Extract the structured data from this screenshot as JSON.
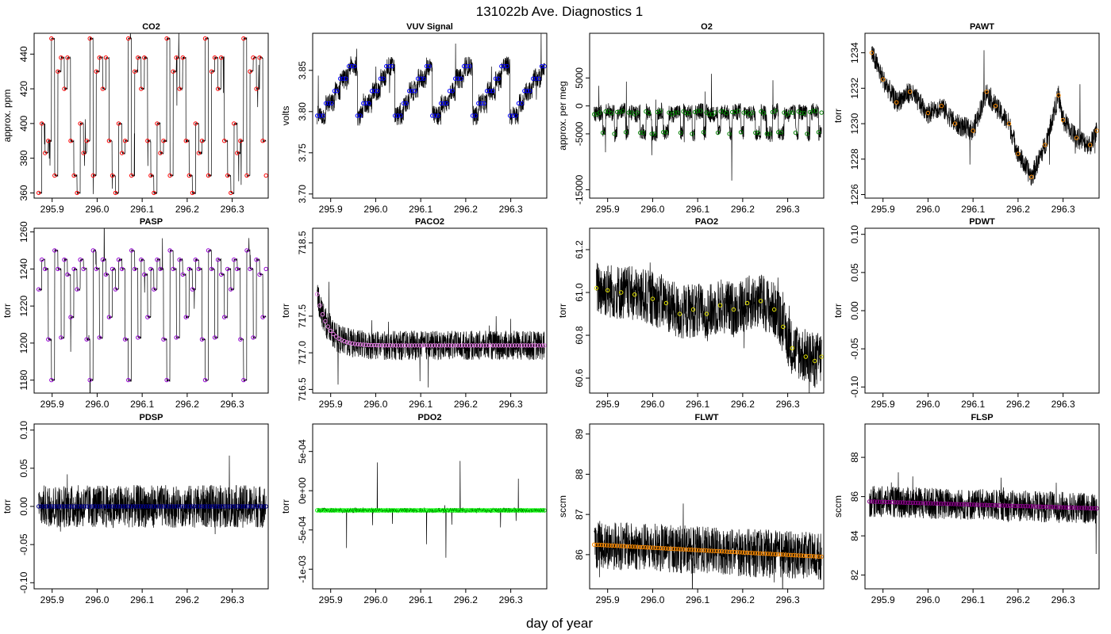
{
  "figure": {
    "title": "131022b   Ave. Diagnostics 1",
    "xlabel": "day of year"
  },
  "chart_data": [
    {
      "type": "line",
      "title": "CO2",
      "ylabel": "approx. ppm",
      "xlim": [
        295.86,
        296.38
      ],
      "ylim": [
        357,
        452
      ],
      "xticks": [
        "295.9",
        "296.0",
        "296.1",
        "296.2",
        "296.3"
      ],
      "yticks": [
        "360",
        "380",
        "400",
        "420",
        "440"
      ],
      "ytick_values": [
        360,
        380,
        400,
        420,
        440
      ],
      "marker_color": "#ff0000",
      "series": {
        "name": "CO2 averages",
        "pattern": "step",
        "cycle": [
          360,
          400,
          383,
          390,
          449,
          370,
          430,
          438,
          420,
          438,
          390,
          370
        ],
        "x_start": 295.87,
        "x_end": 296.375,
        "n": 72
      }
    },
    {
      "type": "line",
      "title": "VUV Signal",
      "ylabel": "volts",
      "xlim": [
        295.86,
        296.38
      ],
      "ylim": [
        3.695,
        3.895
      ],
      "xticks": [
        "295.9",
        "296.0",
        "296.1",
        "296.2",
        "296.3"
      ],
      "yticks": [
        "3.70",
        "3.75",
        "3.80",
        "3.85"
      ],
      "ytick_values": [
        3.7,
        3.75,
        3.8,
        3.85
      ],
      "marker_color": "#0000ff",
      "series": {
        "name": "VUV averages",
        "pattern": "sawtooth",
        "cycle": [
          3.795,
          3.81,
          3.825,
          3.84,
          3.855
        ],
        "x_start": 295.87,
        "x_end": 296.375,
        "n": 80
      }
    },
    {
      "type": "line",
      "title": "O2",
      "ylabel": "approx. per meg",
      "xlim": [
        295.86,
        296.38
      ],
      "ylim": [
        -16500,
        13000
      ],
      "xticks": [
        "295.9",
        "296.0",
        "296.1",
        "296.2",
        "296.3"
      ],
      "yticks": [
        "-15000",
        "-5000",
        "0",
        "5000"
      ],
      "ytick_values": [
        -15000,
        -5000,
        0,
        5000
      ],
      "marker_color": "#008000",
      "series": {
        "name": "O2 averages",
        "pattern": "step",
        "cycle": [
          -1500,
          -1200,
          -4800,
          -1000,
          -1300,
          -5000,
          -1100,
          -900,
          -4700,
          -1200
        ],
        "x_start": 295.87,
        "x_end": 296.375,
        "n": 80
      }
    },
    {
      "type": "line",
      "title": "PAWT",
      "ylabel": "torr",
      "xlim": [
        295.86,
        296.38
      ],
      "ylim": [
        1225.8,
        1235.1
      ],
      "xticks": [
        "295.9",
        "296.0",
        "296.1",
        "296.2",
        "296.3"
      ],
      "yticks": [
        "1226",
        "1228",
        "1230",
        "1232",
        "1234"
      ],
      "ytick_values": [
        1226,
        1228,
        1230,
        1232,
        1234
      ],
      "marker_color": "#ff8c00",
      "series": {
        "name": "PAWT averages",
        "pattern": "line",
        "x": [
          295.875,
          295.9,
          295.93,
          295.96,
          296.0,
          296.03,
          296.06,
          296.1,
          296.13,
          296.15,
          296.18,
          296.2,
          296.23,
          296.26,
          296.29,
          296.3,
          296.33,
          296.36,
          296.375
        ],
        "values": [
          1234.0,
          1232.5,
          1231.2,
          1231.8,
          1230.6,
          1231.0,
          1230.0,
          1229.6,
          1231.8,
          1231.0,
          1230.0,
          1228.3,
          1227.0,
          1228.8,
          1231.6,
          1230.2,
          1229.2,
          1228.8,
          1229.6
        ]
      }
    },
    {
      "type": "line",
      "title": "PASP",
      "ylabel": "torr",
      "xlim": [
        295.86,
        296.38
      ],
      "ylim": [
        1173,
        1262
      ],
      "xticks": [
        "295.9",
        "296.0",
        "296.1",
        "296.2",
        "296.3"
      ],
      "yticks": [
        "1180",
        "1200",
        "1220",
        "1240",
        "1260"
      ],
      "ytick_values": [
        1180,
        1200,
        1220,
        1240,
        1260
      ],
      "marker_color": "#9400d3",
      "series": {
        "name": "PASP averages",
        "pattern": "step",
        "cycle": [
          1229,
          1245,
          1240,
          1202,
          1180,
          1250,
          1240,
          1203,
          1245,
          1237,
          1214,
          1240
        ],
        "x_start": 295.87,
        "x_end": 296.375,
        "n": 72
      }
    },
    {
      "type": "line",
      "title": "PACO2",
      "ylabel": "torr",
      "xlim": [
        295.86,
        296.38
      ],
      "ylim": [
        716.45,
        718.7
      ],
      "xticks": [
        "295.9",
        "296.0",
        "296.1",
        "296.2",
        "296.3"
      ],
      "yticks": [
        "716.5",
        "717.0",
        "717.5",
        "718.5"
      ],
      "ytick_values": [
        716.5,
        717.0,
        717.5,
        718.5
      ],
      "marker_color": "#ee82ee",
      "series": {
        "name": "PACO2 averages",
        "pattern": "decay",
        "start": 717.8,
        "level": 717.1,
        "x_start": 295.87,
        "x_end": 296.375,
        "n": 85
      }
    },
    {
      "type": "line",
      "title": "PAO2",
      "ylabel": "torr",
      "xlim": [
        295.86,
        296.38
      ],
      "ylim": [
        60.53,
        61.3
      ],
      "xticks": [
        "295.9",
        "296.0",
        "296.1",
        "296.2",
        "296.3"
      ],
      "yticks": [
        "60.6",
        "60.8",
        "61.0",
        "61.2"
      ],
      "ytick_values": [
        60.6,
        60.8,
        61.0,
        61.2
      ],
      "marker_color": "#e6e600",
      "series": {
        "name": "PAO2 averages",
        "pattern": "line",
        "x": [
          295.875,
          295.9,
          295.93,
          295.96,
          296.0,
          296.03,
          296.06,
          296.09,
          296.12,
          296.15,
          296.18,
          296.21,
          296.24,
          296.27,
          296.29,
          296.31,
          296.34,
          296.36,
          296.375
        ],
        "values": [
          61.02,
          61.01,
          61.0,
          60.99,
          60.97,
          60.95,
          60.9,
          60.92,
          60.9,
          60.94,
          60.92,
          60.95,
          60.96,
          60.92,
          60.84,
          60.74,
          60.7,
          60.68,
          60.7
        ]
      }
    },
    {
      "type": "line",
      "title": "PDWT",
      "ylabel": "torr",
      "xlim": [
        295.86,
        296.38
      ],
      "ylim": [
        -0.108,
        0.108
      ],
      "xticks": [
        "295.9",
        "296.0",
        "296.1",
        "296.2",
        "296.3"
      ],
      "yticks": [
        "-0.10",
        "-0.05",
        "0.00",
        "0.05",
        "0.10"
      ],
      "ytick_values": [
        -0.1,
        -0.05,
        0.0,
        0.05,
        0.1
      ],
      "marker_color": "#000000",
      "series": {
        "name": "PDWT averages",
        "pattern": "none"
      }
    },
    {
      "type": "line",
      "title": "PDSP",
      "ylabel": "torr",
      "xlim": [
        295.86,
        296.38
      ],
      "ylim": [
        -0.108,
        0.108
      ],
      "xticks": [
        "295.9",
        "296.0",
        "296.1",
        "296.2",
        "296.3"
      ],
      "yticks": [
        "-0.10",
        "-0.05",
        "0.00",
        "0.05",
        "0.10"
      ],
      "ytick_values": [
        -0.1,
        -0.05,
        0.0,
        0.05,
        0.1
      ],
      "marker_color": "#00008b",
      "series": {
        "name": "PDSP averages",
        "pattern": "flat",
        "level": 0.0,
        "noise": 0.028,
        "x_start": 295.87,
        "x_end": 296.375,
        "n": 90
      }
    },
    {
      "type": "line",
      "title": "PDO2",
      "ylabel": "torr",
      "xlim": [
        295.86,
        296.38
      ],
      "ylim": [
        -0.00125,
        0.00085
      ],
      "xticks": [
        "295.9",
        "296.0",
        "296.1",
        "296.2",
        "296.3"
      ],
      "yticks": [
        "-1e-03",
        "-5e-04",
        "0e+00",
        "5e-04"
      ],
      "ytick_values": [
        -0.001,
        -0.0005,
        0.0,
        0.0005
      ],
      "marker_color": "#00ff00",
      "series": {
        "name": "PDO2 averages",
        "pattern": "flat",
        "level": -0.00025,
        "noise": 3e-05,
        "x_start": 295.87,
        "x_end": 296.375,
        "n": 110
      }
    },
    {
      "type": "line",
      "title": "FLWT",
      "ylabel": "sccm",
      "xlim": [
        295.86,
        296.38
      ],
      "ylim": [
        85.15,
        89.25
      ],
      "xticks": [
        "295.9",
        "296.0",
        "296.1",
        "296.2",
        "296.3"
      ],
      "yticks": [
        "86",
        "87",
        "88",
        "89"
      ],
      "ytick_values": [
        86,
        87,
        88,
        89
      ],
      "marker_color": "#ff8c00",
      "series": {
        "name": "FLWT averages",
        "pattern": "trend",
        "start": 86.25,
        "end": 85.95,
        "noise": 0.6,
        "x_start": 295.87,
        "x_end": 296.375,
        "n": 90
      }
    },
    {
      "type": "line",
      "title": "FLSP",
      "ylabel": "sccm",
      "xlim": [
        295.86,
        296.38
      ],
      "ylim": [
        81.3,
        89.7
      ],
      "xticks": [
        "295.9",
        "296.0",
        "296.1",
        "296.2",
        "296.3"
      ],
      "yticks": [
        "82",
        "84",
        "86",
        "88"
      ],
      "ytick_values": [
        82,
        84,
        86,
        88
      ],
      "marker_color": "#8b008b",
      "series": {
        "name": "FLSP averages",
        "pattern": "trend",
        "start": 85.75,
        "end": 85.4,
        "noise": 0.8,
        "x_start": 295.87,
        "x_end": 296.375,
        "n": 90
      }
    }
  ]
}
